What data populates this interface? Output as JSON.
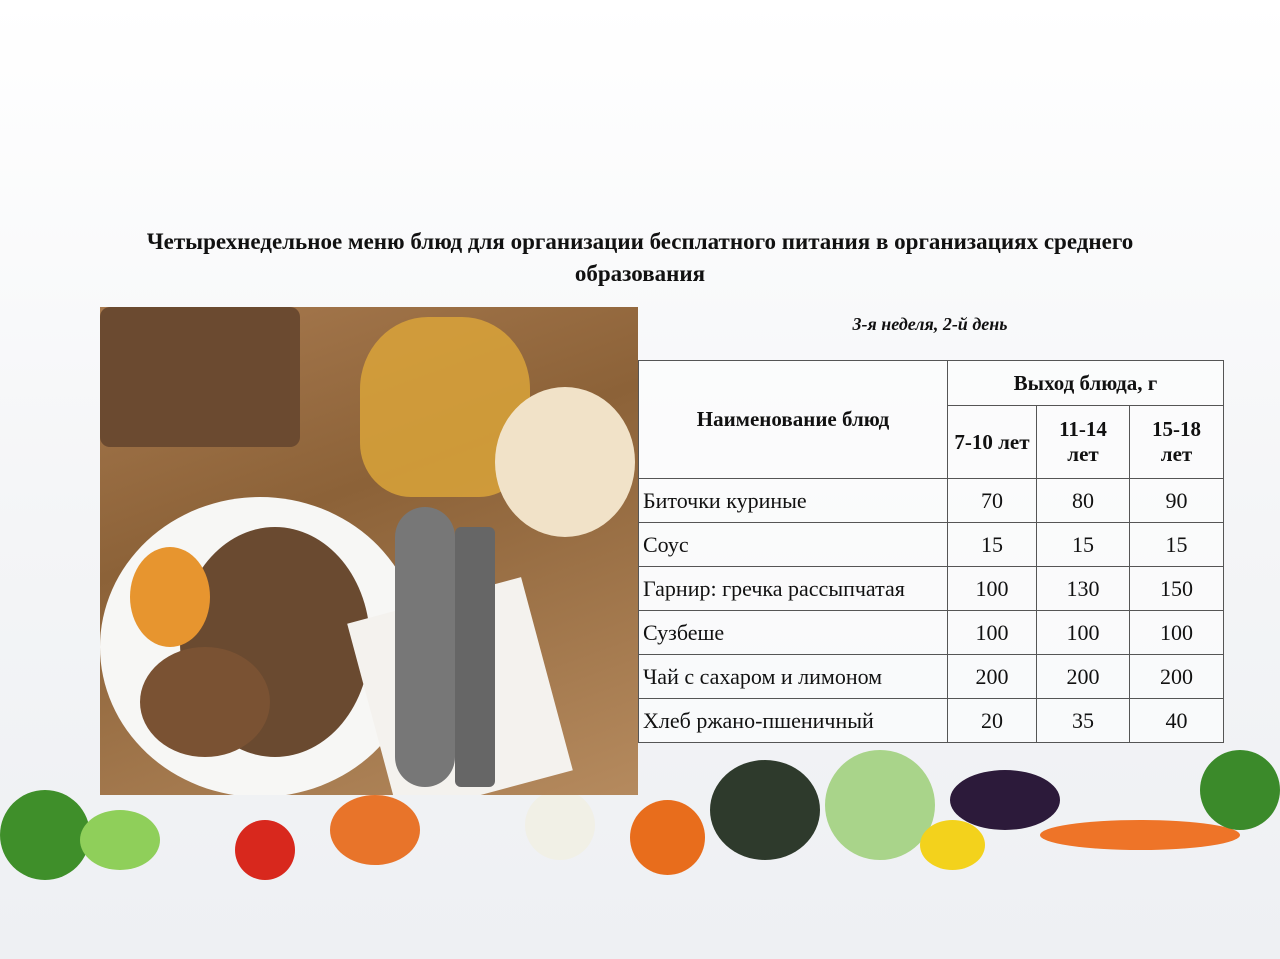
{
  "title": "Четырехнедельное меню блюд для организации бесплатного питания в организациях среднего образования",
  "subtitle": "3-я неделя, 2-й день",
  "table": {
    "name_header": "Наименование блюд",
    "yield_header": "Выход блюда, г",
    "age_groups": [
      "7-10 лет",
      "11-14 лет",
      "15-18 лет"
    ],
    "rows": [
      {
        "name": "Биточки куриные",
        "values": [
          "70",
          "80",
          "90"
        ]
      },
      {
        "name": "Соус",
        "values": [
          "15",
          "15",
          "15"
        ]
      },
      {
        "name": "Гарнир: гречка рассыпчатая",
        "values": [
          "100",
          "130",
          "150"
        ]
      },
      {
        "name": "Сузбеше",
        "values": [
          "100",
          "100",
          "100"
        ]
      },
      {
        "name": "Чай с сахаром и лимоном",
        "values": [
          "200",
          "200",
          "200"
        ]
      },
      {
        "name": "Хлеб ржано-пшеничный",
        "values": [
          "20",
          "35",
          "40"
        ]
      }
    ]
  }
}
